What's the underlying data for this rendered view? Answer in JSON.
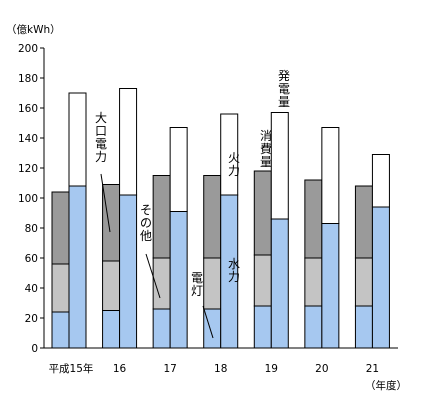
{
  "chart_data": {
    "type": "bar",
    "unit_label": "（億kWh）",
    "x_axis_label": "（年度）",
    "ylim": [
      0,
      200
    ],
    "yticks": [
      0,
      20,
      40,
      60,
      80,
      100,
      120,
      140,
      160,
      180,
      200
    ],
    "categories": [
      "平成15年",
      "16",
      "17",
      "18",
      "19",
      "20",
      "21"
    ],
    "consumption": {
      "name": "消費量",
      "segments": [
        {
          "name": "電灯",
          "values": [
            24,
            25,
            26,
            26,
            28,
            28,
            28
          ],
          "color": "#a6c8f0"
        },
        {
          "name": "その他",
          "values": [
            32,
            33,
            34,
            34,
            34,
            32,
            32
          ],
          "color": "#c4c4c4"
        },
        {
          "name": "大口電力",
          "values": [
            48,
            51,
            55,
            55,
            56,
            52,
            48
          ],
          "color": "#9a9a9a"
        }
      ]
    },
    "generation": {
      "name": "発電量",
      "segments": [
        {
          "name": "水力",
          "values": [
            108,
            102,
            91,
            102,
            86,
            83,
            94
          ],
          "color": "#a6c8f0"
        },
        {
          "name": "火力",
          "values": [
            62,
            71,
            56,
            54,
            71,
            64,
            35
          ],
          "color": "#ffffff"
        }
      ]
    },
    "labels": {
      "large_power": "大口電力",
      "other": "その他",
      "lighting": "電灯",
      "thermal": "火力",
      "hydro": "水力",
      "consumption": "消費量",
      "generation": "発電量"
    }
  }
}
